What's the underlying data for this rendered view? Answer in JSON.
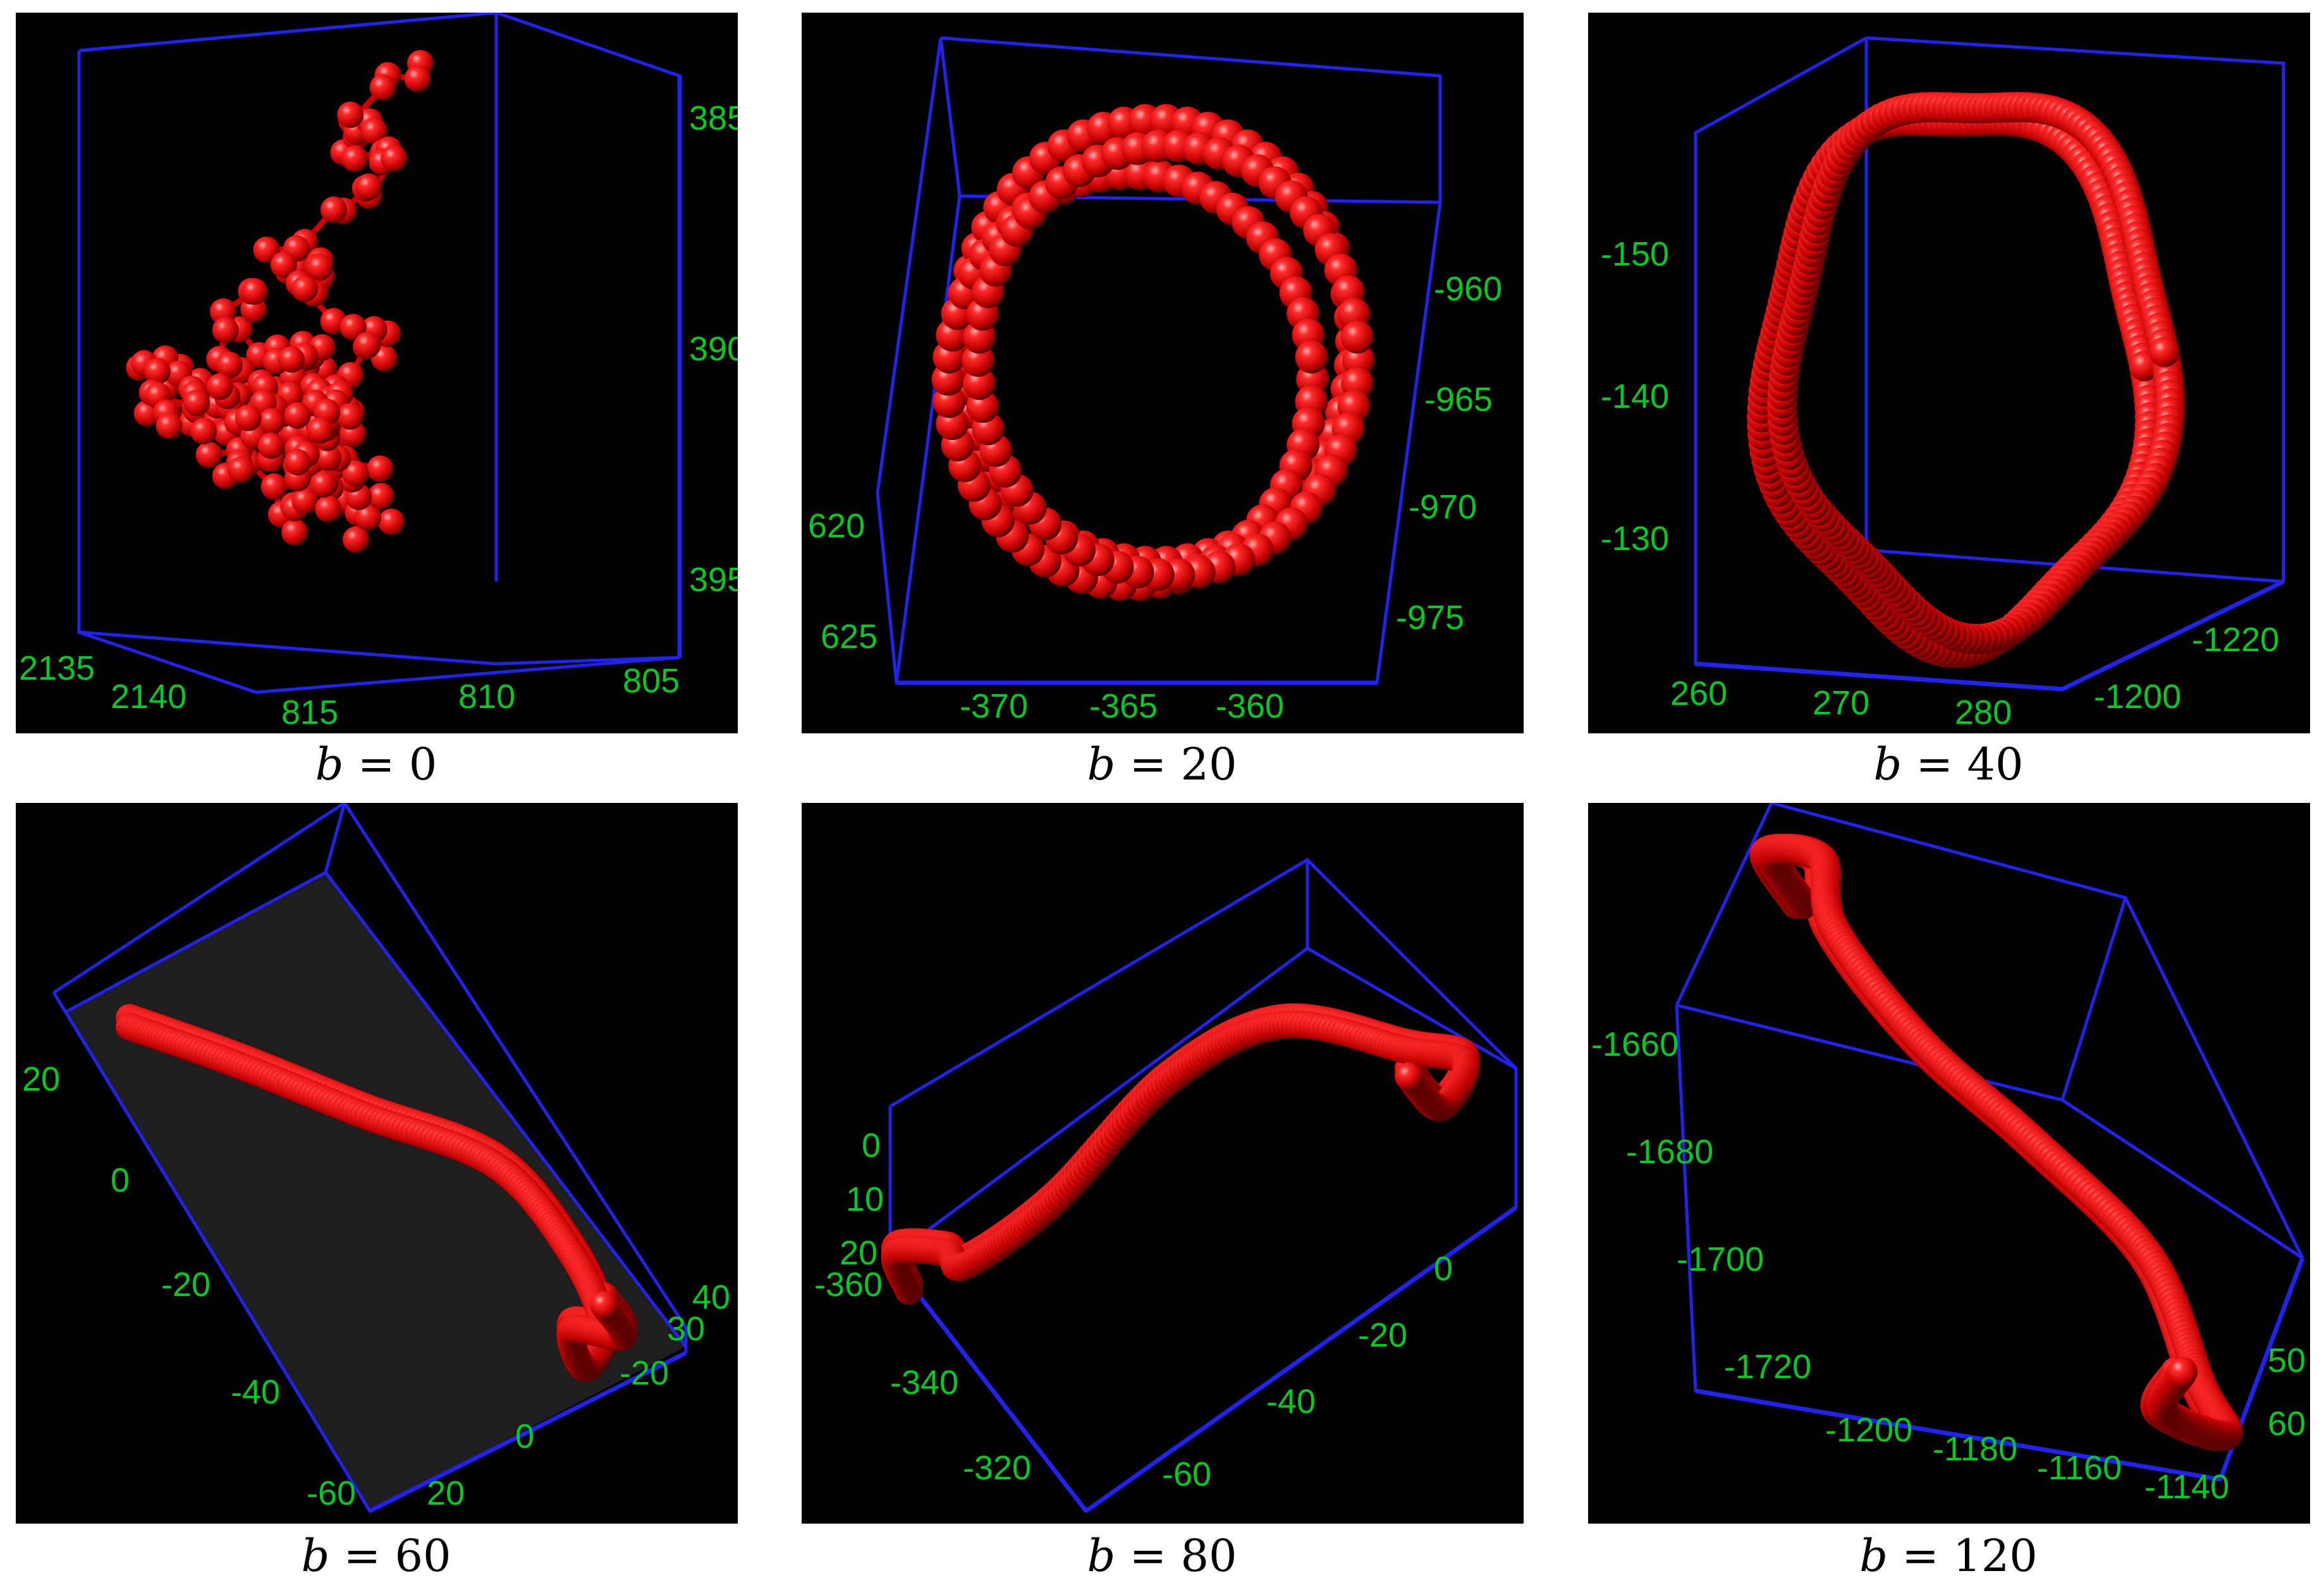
{
  "colors": {
    "background": "#000000",
    "box": "#2222ee",
    "ticks": "#00cc22",
    "chain": "#ee1111"
  },
  "panels": [
    {
      "id": "p1",
      "caption_var": "b",
      "caption_eq": " = ",
      "caption_val": "0",
      "ticks": [
        "385",
        "390",
        "395",
        "2135",
        "2140",
        "815",
        "810",
        "805"
      ]
    },
    {
      "id": "p2",
      "caption_var": "b",
      "caption_eq": " = ",
      "caption_val": "20",
      "ticks": [
        "-960",
        "-965",
        "-970",
        "-975",
        "620",
        "625",
        "-370",
        "-365",
        "-360"
      ]
    },
    {
      "id": "p3",
      "caption_var": "b",
      "caption_eq": " = ",
      "caption_val": "40",
      "ticks": [
        "-150",
        "-140",
        "-130",
        "260",
        "270",
        "280",
        "-1220",
        "-1200"
      ]
    },
    {
      "id": "p4",
      "caption_var": "b",
      "caption_eq": " = ",
      "caption_val": "60",
      "ticks": [
        "20",
        "0",
        "-20",
        "-40",
        "-60",
        "0",
        "20",
        "-20",
        "30",
        "40"
      ]
    },
    {
      "id": "p5",
      "caption_var": "b",
      "caption_eq": " = ",
      "caption_val": "80",
      "ticks": [
        "0",
        "10",
        "20",
        "-360",
        "-340",
        "-320",
        "-60",
        "-40",
        "-20",
        "0"
      ]
    },
    {
      "id": "p6",
      "caption_var": "b",
      "caption_eq": " = ",
      "caption_val": "120",
      "ticks": [
        "-1660",
        "-1680",
        "-1700",
        "-1720",
        "-1200",
        "-1180",
        "-1160",
        "-1140",
        "50",
        "60"
      ]
    }
  ]
}
